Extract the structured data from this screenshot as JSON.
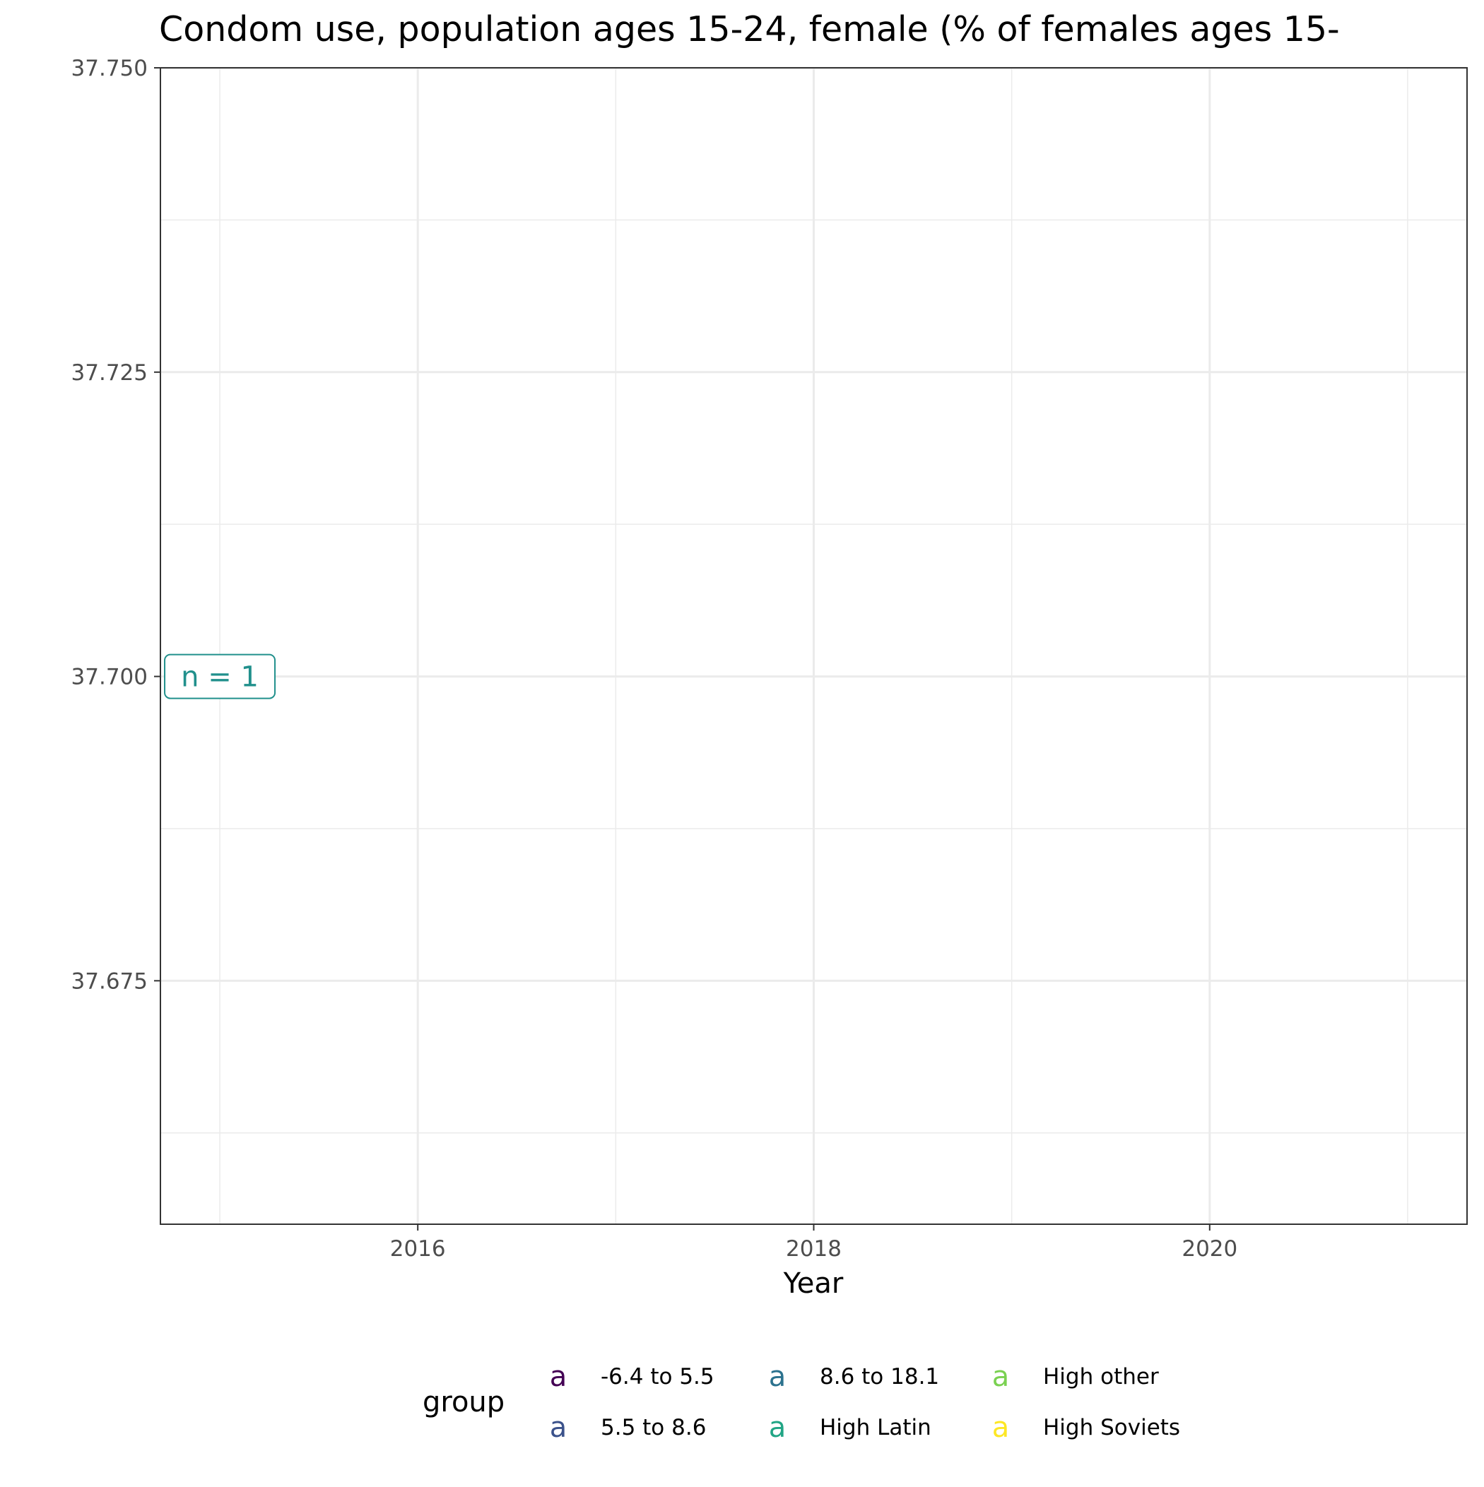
{
  "chart_data": {
    "type": "line",
    "title": "Condom use, population ages 15-24, female (% of females ages 15-",
    "xlabel": "Year",
    "ylabel": "",
    "xlim": [
      2014.7,
      2021.3
    ],
    "ylim": [
      37.655,
      37.75
    ],
    "x_ticks": [
      2016,
      2018,
      2020
    ],
    "x_tick_labels": [
      "2016",
      "2018",
      "2020"
    ],
    "y_ticks": [
      37.675,
      37.7,
      37.725,
      37.75
    ],
    "y_tick_labels": [
      "37.675",
      "37.700",
      "37.725",
      "37.750"
    ],
    "grid": true,
    "series": [],
    "annotations": [
      {
        "text": "n = 1",
        "x": 2015,
        "y": 37.7,
        "color": "#21908c"
      }
    ],
    "legend": {
      "title": "group",
      "position": "bottom",
      "glyph": "a",
      "items": [
        {
          "label": "-6.4 to 5.5",
          "color": "#440154"
        },
        {
          "label": "5.5 to 8.6",
          "color": "#3b528b"
        },
        {
          "label": "8.6 to 18.1",
          "color": "#2c728e"
        },
        {
          "label": "High Latin",
          "color": "#21a585"
        },
        {
          "label": "High other",
          "color": "#7ad151"
        },
        {
          "label": "High Soviets",
          "color": "#fde725"
        }
      ]
    }
  }
}
